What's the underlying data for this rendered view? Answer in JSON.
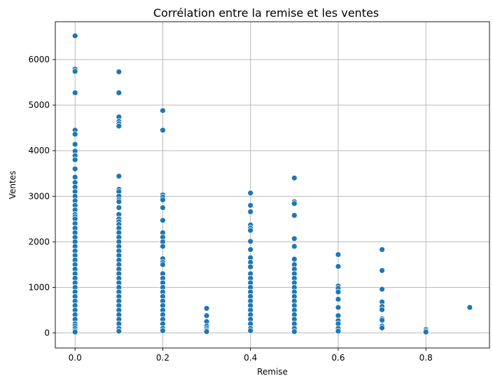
{
  "chart_data": {
    "type": "scatter",
    "title": "Corrélation entre la remise et les ventes",
    "xlabel": "Remise",
    "ylabel": "Ventes",
    "xlim": [
      -0.045,
      0.945
    ],
    "ylim": [
      -330,
      6830
    ],
    "xticks": [
      0.0,
      0.2,
      0.4,
      0.6,
      0.8
    ],
    "xtick_labels": [
      "0.0",
      "0.2",
      "0.4",
      "0.6",
      "0.8"
    ],
    "yticks": [
      0,
      1000,
      2000,
      3000,
      4000,
      5000,
      6000
    ],
    "ytick_labels": [
      "0",
      "1000",
      "2000",
      "3000",
      "4000",
      "5000",
      "6000"
    ],
    "grid": true,
    "color": "#1f77b4",
    "series": [
      {
        "points": [
          [
            0.0,
            6520
          ],
          [
            0.0,
            5790
          ],
          [
            0.0,
            5740
          ],
          [
            0.0,
            5270
          ],
          [
            0.0,
            4450
          ],
          [
            0.0,
            4360
          ],
          [
            0.0,
            4140
          ],
          [
            0.0,
            3990
          ],
          [
            0.0,
            3890
          ],
          [
            0.0,
            3800
          ],
          [
            0.0,
            3600
          ],
          [
            0.0,
            3420
          ],
          [
            0.0,
            3300
          ],
          [
            0.0,
            3200
          ],
          [
            0.0,
            3100
          ],
          [
            0.0,
            3000
          ],
          [
            0.0,
            2900
          ],
          [
            0.0,
            2800
          ],
          [
            0.0,
            2700
          ],
          [
            0.0,
            2600
          ],
          [
            0.0,
            2550
          ],
          [
            0.0,
            2500
          ],
          [
            0.0,
            2400
          ],
          [
            0.0,
            2300
          ],
          [
            0.0,
            2200
          ],
          [
            0.0,
            2100
          ],
          [
            0.0,
            2000
          ],
          [
            0.0,
            1900
          ],
          [
            0.0,
            1800
          ],
          [
            0.0,
            1700
          ],
          [
            0.0,
            1600
          ],
          [
            0.0,
            1500
          ],
          [
            0.0,
            1400
          ],
          [
            0.0,
            1300
          ],
          [
            0.0,
            1200
          ],
          [
            0.0,
            1100
          ],
          [
            0.0,
            1000
          ],
          [
            0.0,
            900
          ],
          [
            0.0,
            800
          ],
          [
            0.0,
            700
          ],
          [
            0.0,
            600
          ],
          [
            0.0,
            500
          ],
          [
            0.0,
            400
          ],
          [
            0.0,
            300
          ],
          [
            0.0,
            200
          ],
          [
            0.0,
            150
          ],
          [
            0.0,
            100
          ],
          [
            0.0,
            50
          ],
          [
            0.0,
            20
          ],
          [
            0.1,
            5730
          ],
          [
            0.1,
            5270
          ],
          [
            0.1,
            4740
          ],
          [
            0.1,
            4640
          ],
          [
            0.1,
            4590
          ],
          [
            0.1,
            4540
          ],
          [
            0.1,
            3440
          ],
          [
            0.1,
            3150
          ],
          [
            0.1,
            3100
          ],
          [
            0.1,
            3000
          ],
          [
            0.1,
            2920
          ],
          [
            0.1,
            2880
          ],
          [
            0.1,
            2750
          ],
          [
            0.1,
            2600
          ],
          [
            0.1,
            2500
          ],
          [
            0.1,
            2440
          ],
          [
            0.1,
            2380
          ],
          [
            0.1,
            2300
          ],
          [
            0.1,
            2200
          ],
          [
            0.1,
            2100
          ],
          [
            0.1,
            2000
          ],
          [
            0.1,
            1900
          ],
          [
            0.1,
            1800
          ],
          [
            0.1,
            1700
          ],
          [
            0.1,
            1600
          ],
          [
            0.1,
            1500
          ],
          [
            0.1,
            1400
          ],
          [
            0.1,
            1300
          ],
          [
            0.1,
            1200
          ],
          [
            0.1,
            1100
          ],
          [
            0.1,
            1000
          ],
          [
            0.1,
            900
          ],
          [
            0.1,
            800
          ],
          [
            0.1,
            700
          ],
          [
            0.1,
            600
          ],
          [
            0.1,
            500
          ],
          [
            0.1,
            400
          ],
          [
            0.1,
            300
          ],
          [
            0.1,
            200
          ],
          [
            0.1,
            100
          ],
          [
            0.1,
            40
          ],
          [
            0.2,
            4880
          ],
          [
            0.2,
            4450
          ],
          [
            0.2,
            3030
          ],
          [
            0.2,
            2980
          ],
          [
            0.2,
            2920
          ],
          [
            0.2,
            2750
          ],
          [
            0.2,
            2470
          ],
          [
            0.2,
            2200
          ],
          [
            0.2,
            2100
          ],
          [
            0.2,
            2000
          ],
          [
            0.2,
            1900
          ],
          [
            0.2,
            1630
          ],
          [
            0.2,
            1550
          ],
          [
            0.2,
            1500
          ],
          [
            0.2,
            1300
          ],
          [
            0.2,
            1200
          ],
          [
            0.2,
            1100
          ],
          [
            0.2,
            1000
          ],
          [
            0.2,
            900
          ],
          [
            0.2,
            800
          ],
          [
            0.2,
            700
          ],
          [
            0.2,
            600
          ],
          [
            0.2,
            500
          ],
          [
            0.2,
            400
          ],
          [
            0.2,
            300
          ],
          [
            0.2,
            200
          ],
          [
            0.2,
            100
          ],
          [
            0.2,
            50
          ],
          [
            0.3,
            540
          ],
          [
            0.3,
            380
          ],
          [
            0.3,
            250
          ],
          [
            0.3,
            150
          ],
          [
            0.3,
            100
          ],
          [
            0.3,
            60
          ],
          [
            0.3,
            30
          ],
          [
            0.4,
            3070
          ],
          [
            0.4,
            2800
          ],
          [
            0.4,
            2660
          ],
          [
            0.4,
            2370
          ],
          [
            0.4,
            2300
          ],
          [
            0.4,
            2250
          ],
          [
            0.4,
            2010
          ],
          [
            0.4,
            1830
          ],
          [
            0.4,
            1650
          ],
          [
            0.4,
            1550
          ],
          [
            0.4,
            1450
          ],
          [
            0.4,
            1300
          ],
          [
            0.4,
            1200
          ],
          [
            0.4,
            1100
          ],
          [
            0.4,
            1000
          ],
          [
            0.4,
            900
          ],
          [
            0.4,
            800
          ],
          [
            0.4,
            700
          ],
          [
            0.4,
            600
          ],
          [
            0.4,
            500
          ],
          [
            0.4,
            400
          ],
          [
            0.4,
            300
          ],
          [
            0.4,
            200
          ],
          [
            0.4,
            100
          ],
          [
            0.4,
            50
          ],
          [
            0.5,
            3400
          ],
          [
            0.5,
            2880
          ],
          [
            0.5,
            2840
          ],
          [
            0.5,
            2580
          ],
          [
            0.5,
            2070
          ],
          [
            0.5,
            1900
          ],
          [
            0.5,
            1620
          ],
          [
            0.5,
            1500
          ],
          [
            0.5,
            1400
          ],
          [
            0.5,
            1300
          ],
          [
            0.5,
            1200
          ],
          [
            0.5,
            1100
          ],
          [
            0.5,
            1000
          ],
          [
            0.5,
            900
          ],
          [
            0.5,
            800
          ],
          [
            0.5,
            700
          ],
          [
            0.5,
            600
          ],
          [
            0.5,
            500
          ],
          [
            0.5,
            400
          ],
          [
            0.5,
            300
          ],
          [
            0.5,
            200
          ],
          [
            0.5,
            100
          ],
          [
            0.5,
            30
          ],
          [
            0.6,
            1720
          ],
          [
            0.6,
            1460
          ],
          [
            0.6,
            1030
          ],
          [
            0.6,
            980
          ],
          [
            0.6,
            900
          ],
          [
            0.6,
            740
          ],
          [
            0.6,
            560
          ],
          [
            0.6,
            380
          ],
          [
            0.6,
            270
          ],
          [
            0.6,
            200
          ],
          [
            0.6,
            100
          ],
          [
            0.6,
            40
          ],
          [
            0.7,
            1830
          ],
          [
            0.7,
            1370
          ],
          [
            0.7,
            960
          ],
          [
            0.7,
            680
          ],
          [
            0.7,
            580
          ],
          [
            0.7,
            510
          ],
          [
            0.7,
            310
          ],
          [
            0.7,
            280
          ],
          [
            0.7,
            150
          ],
          [
            0.7,
            110
          ],
          [
            0.8,
            80
          ],
          [
            0.8,
            50
          ],
          [
            0.8,
            20
          ],
          [
            0.9,
            560
          ]
        ]
      }
    ]
  }
}
